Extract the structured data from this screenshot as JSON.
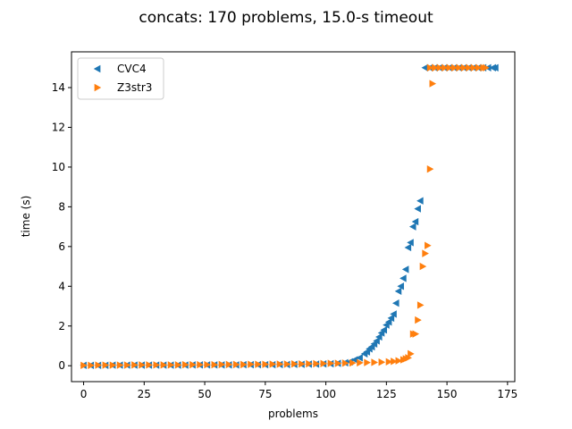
{
  "chart_data": {
    "type": "scatter",
    "title": "concats: 170 problems, 15.0-s timeout",
    "xlabel": "problems",
    "ylabel": "time (s)",
    "xlim": [
      -5,
      178
    ],
    "ylim": [
      -0.8,
      15.8
    ],
    "xticks": [
      0,
      25,
      50,
      75,
      100,
      125,
      150,
      175
    ],
    "yticks": [
      0,
      2,
      4,
      6,
      8,
      10,
      12,
      14
    ],
    "grid": false,
    "legend": "top-left",
    "series": [
      {
        "name": "CVC4",
        "color": "#1f77b4",
        "marker": "triangle-left",
        "x": [
          0,
          3,
          6,
          9,
          12,
          15,
          18,
          21,
          24,
          27,
          30,
          33,
          36,
          39,
          42,
          45,
          48,
          51,
          54,
          57,
          60,
          63,
          66,
          69,
          72,
          75,
          78,
          81,
          84,
          87,
          90,
          93,
          96,
          99,
          102,
          105,
          108,
          110,
          112,
          114,
          116,
          117,
          118,
          119,
          120,
          121,
          122,
          123,
          124,
          125,
          126,
          127,
          128,
          129,
          130,
          131,
          132,
          133,
          134,
          135,
          136,
          137,
          138,
          139,
          141,
          143,
          145,
          147,
          149,
          151,
          153,
          155,
          157,
          159,
          161,
          163,
          165,
          167,
          169,
          170
        ],
        "y": [
          0.02,
          0.02,
          0.02,
          0.02,
          0.03,
          0.03,
          0.03,
          0.03,
          0.03,
          0.03,
          0.03,
          0.03,
          0.03,
          0.03,
          0.03,
          0.04,
          0.04,
          0.04,
          0.04,
          0.04,
          0.04,
          0.04,
          0.05,
          0.05,
          0.05,
          0.05,
          0.05,
          0.06,
          0.06,
          0.07,
          0.07,
          0.08,
          0.08,
          0.09,
          0.1,
          0.12,
          0.15,
          0.2,
          0.3,
          0.4,
          0.6,
          0.7,
          0.85,
          0.95,
          1.1,
          1.25,
          1.45,
          1.65,
          1.8,
          2.05,
          2.2,
          2.4,
          2.6,
          3.15,
          3.75,
          4.0,
          4.4,
          4.85,
          5.95,
          6.2,
          7.0,
          7.25,
          7.9,
          8.3,
          15,
          15,
          15,
          15,
          15,
          15,
          15,
          15,
          15,
          15,
          15,
          15,
          15,
          15,
          15,
          15
        ]
      },
      {
        "name": "Z3str3",
        "color": "#ff7f0e",
        "marker": "triangle-right",
        "x": [
          0,
          3,
          6,
          9,
          12,
          15,
          18,
          21,
          24,
          27,
          30,
          33,
          36,
          39,
          42,
          45,
          48,
          51,
          54,
          57,
          60,
          63,
          66,
          69,
          72,
          75,
          78,
          81,
          84,
          87,
          90,
          93,
          96,
          99,
          102,
          105,
          108,
          111,
          114,
          117,
          120,
          123,
          126,
          128,
          130,
          132,
          133,
          134,
          135,
          136,
          137,
          138,
          139,
          140,
          141,
          142,
          143,
          144,
          145,
          143,
          145,
          147,
          149,
          151,
          153,
          155,
          157,
          159,
          161,
          163,
          165,
          166
        ],
        "y": [
          0.02,
          0.02,
          0.03,
          0.03,
          0.03,
          0.03,
          0.03,
          0.04,
          0.04,
          0.04,
          0.04,
          0.04,
          0.04,
          0.04,
          0.05,
          0.05,
          0.05,
          0.05,
          0.05,
          0.06,
          0.06,
          0.06,
          0.06,
          0.07,
          0.07,
          0.07,
          0.08,
          0.08,
          0.08,
          0.09,
          0.09,
          0.1,
          0.1,
          0.11,
          0.12,
          0.12,
          0.13,
          0.14,
          0.15,
          0.16,
          0.17,
          0.18,
          0.2,
          0.22,
          0.25,
          0.3,
          0.35,
          0.4,
          0.6,
          1.6,
          1.6,
          2.3,
          3.05,
          5.0,
          5.65,
          6.05,
          9.9,
          14.2,
          15,
          15,
          15,
          15,
          15,
          15,
          15,
          15,
          15,
          15,
          15,
          15,
          15,
          15
        ]
      }
    ]
  }
}
